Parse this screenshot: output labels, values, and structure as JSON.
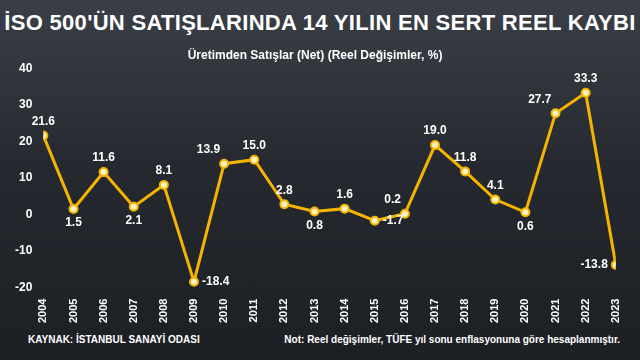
{
  "chart_data": {
    "type": "line",
    "title": "İSO 500'ÜN SATIŞLARINDA 14 YILIN EN SERT REEL KAYBI",
    "subtitle": "Üretimden Satışlar (Net) (Reel Değişimler, %)",
    "source": "KAYNAK: İSTANBUL SANAYİ ODASI",
    "note": "Not: Reel değişimler, TÜFE yıl sonu enflasyonuna göre hesaplanmıştır.",
    "categories": [
      "2004",
      "2005",
      "2006",
      "2007",
      "2008",
      "2009",
      "2010",
      "2011",
      "2012",
      "2013",
      "2014",
      "2015",
      "2016",
      "2017",
      "2018",
      "2019",
      "2020",
      "2021",
      "2022",
      "2023"
    ],
    "values": [
      21.6,
      1.5,
      11.6,
      2.1,
      8.1,
      -18.4,
      13.9,
      15.0,
      2.8,
      0.8,
      1.6,
      -1.7,
      0.2,
      19.0,
      11.8,
      4.1,
      0.6,
      27.7,
      33.3,
      -13.8
    ],
    "value_labels": [
      "21.6",
      "1.5",
      "11.6",
      "2.1",
      "8.1",
      "-18.4",
      "13.9",
      "15.0",
      "2.8",
      "0.8",
      "1.6",
      "-1.7",
      "0.2",
      "19.0",
      "11.8",
      "4.1",
      "0.6",
      "27.7",
      "33.3",
      "-13.8"
    ],
    "color": "#f5b400",
    "marker": "circle",
    "ylim": [
      -20,
      40
    ],
    "yticks": [
      -20,
      -10,
      0,
      10,
      20,
      30,
      40
    ],
    "grid": false,
    "data_labels": true
  }
}
